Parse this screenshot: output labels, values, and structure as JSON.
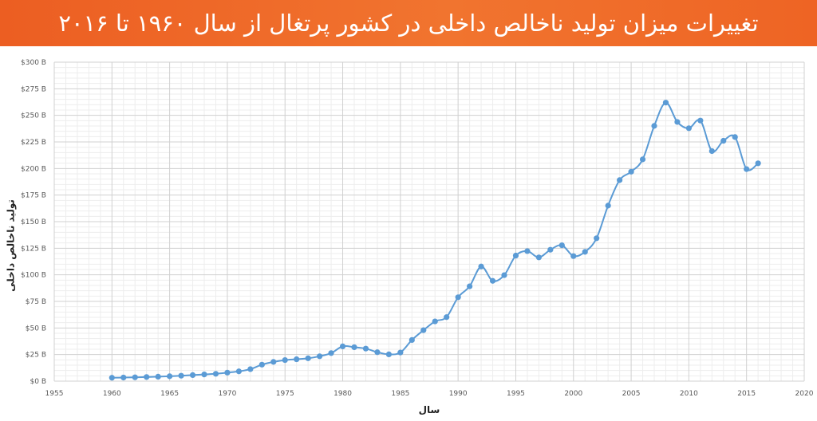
{
  "header": {
    "title": "تغییرات میزان تولید ناخالص داخلی در کشور پرتغال از سال ۱۹۶۰ تا ۲۰۱۶"
  },
  "chart_data": {
    "type": "scatter",
    "title": "تغییرات میزان تولید ناخالص داخلی در کشور پرتغال از سال ۱۹۶۰ تا ۲۰۱۶",
    "xlabel": "سال",
    "ylabel": "تولید ناخالص داخلی",
    "xlim": [
      1955,
      2020
    ],
    "ylim": [
      0,
      300
    ],
    "x_ticks": [
      1955,
      1960,
      1965,
      1970,
      1975,
      1980,
      1985,
      1990,
      1995,
      2000,
      2005,
      2010,
      2015,
      2020
    ],
    "y_ticks": [
      0,
      25,
      50,
      75,
      100,
      125,
      150,
      175,
      200,
      225,
      250,
      275,
      300
    ],
    "y_tick_labels": [
      "$0 B",
      "$25 B",
      "$50 B",
      "$75 B",
      "$100 B",
      "$125 B",
      "$150 B",
      "$175 B",
      "$200 B",
      "$225 B",
      "$250 B",
      "$275 B",
      "$300 B"
    ],
    "grid": true,
    "smooth": true,
    "color": "#5b9bd5",
    "series": [
      {
        "x": [
          1960,
          1961,
          1962,
          1963,
          1964,
          1965,
          1966,
          1967,
          1968,
          1969,
          1970,
          1971,
          1972,
          1973,
          1974,
          1975,
          1976,
          1977,
          1978,
          1979,
          1980,
          1981,
          1982,
          1983,
          1984,
          1985,
          1986,
          1987,
          1988,
          1989,
          1990,
          1991,
          1992,
          1993,
          1994,
          1995,
          1996,
          1997,
          1998,
          1999,
          2000,
          2001,
          2002,
          2003,
          2004,
          2005,
          2006,
          2007,
          2008,
          2009,
          2010,
          2011,
          2012,
          2013,
          2014,
          2015,
          2016
        ],
        "y": [
          3.2,
          3.4,
          3.6,
          3.9,
          4.2,
          4.6,
          5.1,
          5.7,
          6.3,
          6.9,
          8.0,
          9.2,
          11.3,
          15.5,
          18.1,
          19.8,
          20.6,
          21.5,
          23.4,
          26.4,
          32.7,
          31.9,
          30.6,
          27.2,
          25.2,
          26.9,
          38.7,
          47.9,
          56.2,
          60.2,
          78.9,
          89.2,
          107.8,
          94.3,
          99.7,
          118.1,
          122.3,
          116.4,
          123.6,
          127.8,
          117.6,
          121.6,
          134.4,
          165.1,
          189.1,
          197.0,
          208.6,
          240.1,
          262.0,
          243.8,
          237.9,
          245.1,
          216.4,
          226.1,
          229.6,
          199.4,
          204.9
        ]
      }
    ]
  }
}
